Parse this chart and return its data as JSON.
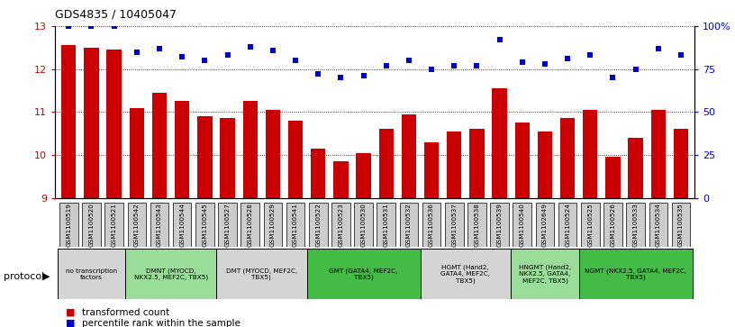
{
  "title": "GDS4835 / 10405047",
  "samples": [
    "GSM1100519",
    "GSM1100520",
    "GSM1100521",
    "GSM1100542",
    "GSM1100543",
    "GSM1100544",
    "GSM1100545",
    "GSM1100527",
    "GSM1100528",
    "GSM1100529",
    "GSM1100541",
    "GSM1100522",
    "GSM1100523",
    "GSM1100530",
    "GSM1100531",
    "GSM1100532",
    "GSM1100536",
    "GSM1100537",
    "GSM1100538",
    "GSM1100539",
    "GSM1100540",
    "GSM1102649",
    "GSM1100524",
    "GSM1100525",
    "GSM1100526",
    "GSM1100533",
    "GSM1100534",
    "GSM1100535"
  ],
  "bar_values": [
    12.55,
    12.5,
    12.45,
    11.1,
    11.45,
    11.25,
    10.9,
    10.85,
    11.25,
    11.05,
    10.8,
    10.15,
    9.85,
    10.05,
    10.6,
    10.95,
    10.3,
    10.55,
    10.6,
    11.55,
    10.75,
    10.55,
    10.85,
    11.05,
    9.95,
    10.4,
    11.05,
    10.6
  ],
  "percentile_values": [
    100,
    100,
    100,
    85,
    87,
    82,
    80,
    83,
    88,
    86,
    80,
    72,
    70,
    71,
    77,
    80,
    75,
    77,
    77,
    92,
    79,
    78,
    81,
    83,
    70,
    75,
    87,
    83
  ],
  "ylim": [
    9,
    13
  ],
  "y2lim": [
    0,
    100
  ],
  "yticks": [
    9,
    10,
    11,
    12,
    13
  ],
  "y2ticks": [
    0,
    25,
    50,
    75,
    100
  ],
  "y2ticklabels": [
    "0",
    "25",
    "50",
    "75",
    "100%"
  ],
  "bar_color": "#cc0000",
  "dot_color": "#0000cc",
  "bg_color": "#ffffff",
  "xtick_box_color": "#cccccc",
  "protocol_groups": [
    {
      "label": "no transcription\nfactors",
      "start": 0,
      "end": 3,
      "color": "#d4d4d4"
    },
    {
      "label": "DMNT (MYOCD,\nNKX2.5, MEF2C, TBX5)",
      "start": 3,
      "end": 7,
      "color": "#99dd99"
    },
    {
      "label": "DMT (MYOCD, MEF2C,\nTBX5)",
      "start": 7,
      "end": 11,
      "color": "#d4d4d4"
    },
    {
      "label": "GMT (GATA4, MEF2C,\nTBX5)",
      "start": 11,
      "end": 16,
      "color": "#44bb44"
    },
    {
      "label": "HGMT (Hand2,\nGATA4, MEF2C,\nTBX5)",
      "start": 16,
      "end": 20,
      "color": "#d4d4d4"
    },
    {
      "label": "HNGMT (Hand2,\nNKX2.5, GATA4,\nMEF2C, TBX5)",
      "start": 20,
      "end": 23,
      "color": "#99dd99"
    },
    {
      "label": "NGMT (NKX2.5, GATA4, MEF2C,\nTBX5)",
      "start": 23,
      "end": 28,
      "color": "#44bb44"
    }
  ],
  "protocol_label": "protocol",
  "legend_items": [
    {
      "label": "transformed count",
      "color": "#cc0000"
    },
    {
      "label": "percentile rank within the sample",
      "color": "#0000cc"
    }
  ]
}
